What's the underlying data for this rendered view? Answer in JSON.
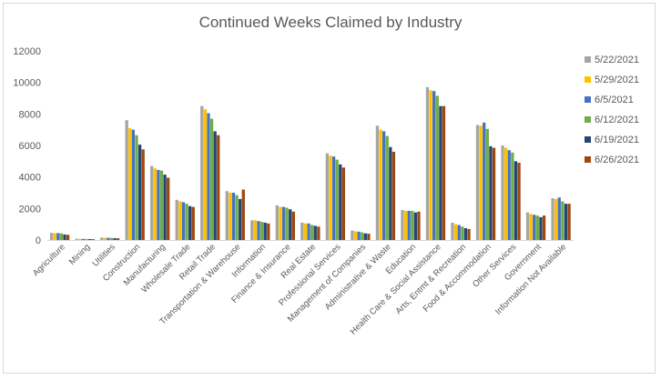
{
  "chart_data": {
    "type": "bar",
    "title": "Continued Weeks Claimed by Industry",
    "xlabel": "",
    "ylabel": "",
    "ylim": [
      0,
      12000
    ],
    "yticks": [
      "0",
      "2000",
      "4000",
      "6000",
      "8000",
      "10000",
      "12000"
    ],
    "grid": false,
    "legend_position": "right",
    "categories": [
      "Agriculture",
      "Mining",
      "Utilities",
      "Construction",
      "Manufacturing",
      "Wholesale Trade",
      "Retail Trade",
      "Transportation & Warehouse",
      "Information",
      "Finance & Insurance",
      "Real Estate",
      "Professional Services",
      "Management of Companies",
      "Administrative & Waste",
      "Education",
      "Health Care & Social Assistance",
      "Arts, Entmt & Recreation",
      "Food & Accommodation",
      "Other Services",
      "Government",
      "Information Not Available"
    ],
    "series": [
      {
        "name": "5/22/2021",
        "color": "#a5a5a5",
        "values": [
          450,
          80,
          150,
          7600,
          4700,
          2550,
          8500,
          3100,
          1250,
          2200,
          1100,
          5500,
          600,
          7250,
          1900,
          9700,
          1100,
          7300,
          6000,
          1750,
          2650
        ]
      },
      {
        "name": "5/29/2021",
        "color": "#ffc000",
        "values": [
          430,
          75,
          140,
          7100,
          4550,
          2450,
          8300,
          3000,
          1250,
          2100,
          1050,
          5350,
          550,
          7000,
          1850,
          9500,
          1000,
          7250,
          5850,
          1650,
          2600
        ]
      },
      {
        "name": "6/5/2021",
        "color": "#4472c4",
        "values": [
          440,
          70,
          140,
          7000,
          4450,
          2400,
          8050,
          3000,
          1200,
          2100,
          1050,
          5300,
          530,
          6900,
          1850,
          9450,
          950,
          7450,
          5700,
          1600,
          2700
        ]
      },
      {
        "name": "6/12/2021",
        "color": "#70ad47",
        "values": [
          420,
          65,
          130,
          6650,
          4400,
          2300,
          7700,
          2850,
          1150,
          2050,
          950,
          5100,
          480,
          6600,
          1850,
          9150,
          850,
          7050,
          5550,
          1550,
          2450
        ]
      },
      {
        "name": "6/19/2021",
        "color": "#264478",
        "values": [
          350,
          60,
          120,
          6050,
          4150,
          2150,
          6900,
          2600,
          1100,
          1950,
          900,
          4800,
          420,
          5900,
          1750,
          8500,
          750,
          5950,
          5000,
          1450,
          2300
        ]
      },
      {
        "name": "6/26/2021",
        "color": "#9e480e",
        "values": [
          330,
          55,
          110,
          5750,
          3950,
          2100,
          6650,
          3200,
          1050,
          1800,
          850,
          4600,
          400,
          5600,
          1800,
          8500,
          700,
          5850,
          4900,
          1550,
          2300
        ]
      }
    ]
  }
}
